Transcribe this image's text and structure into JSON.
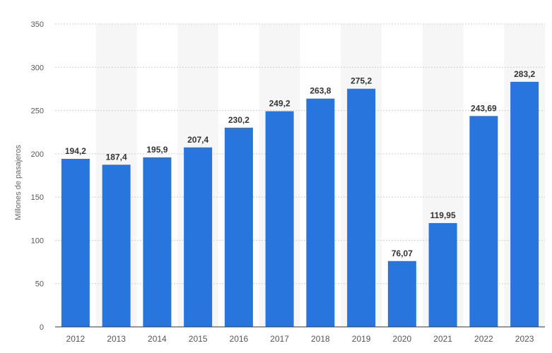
{
  "chart_data": {
    "type": "bar",
    "title": "",
    "xlabel": "",
    "ylabel": "Millones de pasajeros",
    "ylim": [
      0,
      350
    ],
    "yticks": [
      0,
      50,
      100,
      150,
      200,
      250,
      300,
      350
    ],
    "grid": true,
    "categories": [
      "2012",
      "2013",
      "2014",
      "2015",
      "2016",
      "2017",
      "2018",
      "2019",
      "2020",
      "2021",
      "2022",
      "2023"
    ],
    "values": [
      194.2,
      187.4,
      195.9,
      207.4,
      230.2,
      249.2,
      263.8,
      275.2,
      76.07,
      119.95,
      243.69,
      283.2
    ],
    "value_labels": [
      "194,2",
      "187,4",
      "195,9",
      "207,4",
      "230,2",
      "249,2",
      "263,8",
      "275,2",
      "76,07",
      "119,95",
      "243,69",
      "283,2"
    ],
    "colors": {
      "bar": "#2876dd",
      "band": "#f6f6f6",
      "grid": "#cfcfcf",
      "axis": "#333333"
    }
  }
}
